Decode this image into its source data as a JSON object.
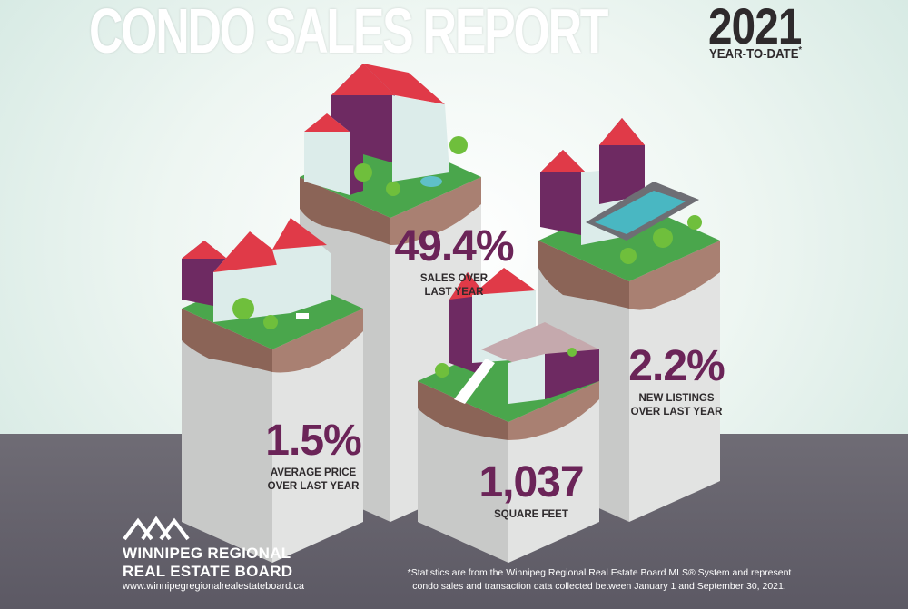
{
  "header": {
    "title": "CONDO SALES REPORT",
    "year": "2021",
    "subtitle": "YEAR-TO-DATE",
    "asterisk": "*"
  },
  "stats": [
    {
      "value": "49.4%",
      "label_line1": "SALES OVER",
      "label_line2": "LAST YEAR"
    },
    {
      "value": "1.5%",
      "label_line1": "AVERAGE PRICE",
      "label_line2": "OVER LAST YEAR"
    },
    {
      "value": "2.2%",
      "label_line1": "NEW LISTINGS",
      "label_line2": "OVER LAST YEAR"
    },
    {
      "value": "1,037",
      "label_line1": "SQUARE FEET",
      "label_line2": ""
    }
  ],
  "logo": {
    "line1": "WINNIPEG REGIONAL",
    "line2": "REAL ESTATE BOARD",
    "url": "www.winnipegregionalrealestateboard.ca"
  },
  "footnote": {
    "line1": "*Statistics are from the Winnipeg Regional Real Estate Board MLS® System and represent",
    "line2": "condo sales and transaction data collected between January 1 and September 30, 2021."
  },
  "colors": {
    "roof": "#e03a48",
    "wall_purple": "#6e2a62",
    "wall_light": "#dcecea",
    "grass": "#4aa64c",
    "soil": "#9c7566",
    "pillar": "#d6d7d6",
    "stat_text": "#6b2458"
  }
}
